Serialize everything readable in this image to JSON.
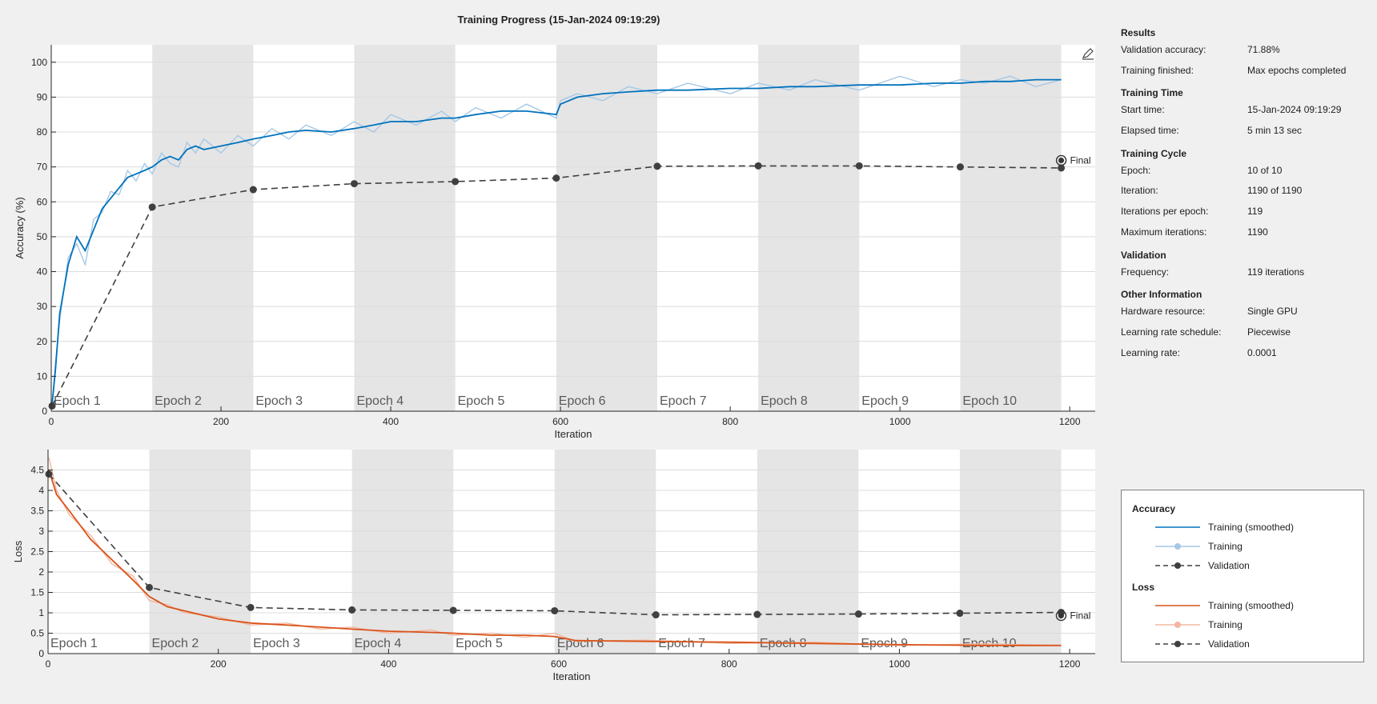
{
  "window": {
    "title": "Training Progress (15-Jan-2024 09:19:29)"
  },
  "colors": {
    "train_acc": "#0072bd",
    "train_acc_raw": "#a6c8e6",
    "train_loss": "#d95319",
    "train_loss_raw": "#f0b8a0",
    "validation": "#404040",
    "epoch_shade": "#e5e5e5"
  },
  "export_icon": "pen-export-icon",
  "info": [
    {
      "heading": "Results",
      "rows": [
        {
          "k": "Validation accuracy:",
          "v": "71.88%"
        },
        {
          "k": "Training finished:",
          "v": "Max epochs completed"
        }
      ]
    },
    {
      "heading": "Training Time",
      "rows": [
        {
          "k": "Start time:",
          "v": "15-Jan-2024 09:19:29"
        },
        {
          "k": "Elapsed time:",
          "v": "5 min 13 sec"
        }
      ]
    },
    {
      "heading": "Training Cycle",
      "rows": [
        {
          "k": "Epoch:",
          "v": "10 of 10"
        },
        {
          "k": "Iteration:",
          "v": "1190 of 1190"
        },
        {
          "k": "Iterations per epoch:",
          "v": "119"
        },
        {
          "k": "Maximum iterations:",
          "v": "1190"
        }
      ]
    },
    {
      "heading": "Validation",
      "rows": [
        {
          "k": "Frequency:",
          "v": "119 iterations"
        }
      ]
    },
    {
      "heading": "Other Information",
      "rows": [
        {
          "k": "Hardware resource:",
          "v": "Single GPU"
        },
        {
          "k": "Learning rate schedule:",
          "v": "Piecewise"
        },
        {
          "k": "Learning rate:",
          "v": "0.0001"
        }
      ]
    }
  ],
  "legend": {
    "groups": [
      {
        "heading": "Accuracy",
        "items": [
          {
            "label": "Training (smoothed)",
            "kind": "smooth",
            "color": "#0072bd"
          },
          {
            "label": "Training",
            "kind": "raw",
            "color": "#a6c8e6"
          },
          {
            "label": "Validation",
            "kind": "val",
            "color": "#404040"
          }
        ]
      },
      {
        "heading": "Loss",
        "items": [
          {
            "label": "Training (smoothed)",
            "kind": "smooth",
            "color": "#d95319"
          },
          {
            "label": "Training",
            "kind": "raw",
            "color": "#f0b8a0"
          },
          {
            "label": "Validation",
            "kind": "val",
            "color": "#404040"
          }
        ]
      }
    ]
  },
  "chart_data": [
    {
      "type": "line",
      "xlabel": "Iteration",
      "ylabel": "Accuracy (%)",
      "xlim": [
        0,
        1230
      ],
      "ylim": [
        0,
        105
      ],
      "xticks": [
        0,
        200,
        400,
        600,
        800,
        1000,
        1200
      ],
      "yticks": [
        0,
        10,
        20,
        30,
        40,
        50,
        60,
        70,
        80,
        90,
        100
      ],
      "grid": true,
      "epochs": [
        "Epoch 1",
        "Epoch 2",
        "Epoch 3",
        "Epoch 4",
        "Epoch 5",
        "Epoch 6",
        "Epoch 7",
        "Epoch 8",
        "Epoch 9",
        "Epoch 10"
      ],
      "epoch_length": 119,
      "final_label": "Final",
      "final_x": 1190,
      "final_value": 71.88,
      "series": [
        {
          "name": "Training (smoothed)",
          "x": [
            1,
            5,
            10,
            20,
            30,
            40,
            50,
            60,
            70,
            80,
            90,
            100,
            110,
            119,
            130,
            140,
            150,
            160,
            170,
            180,
            200,
            220,
            238,
            260,
            280,
            300,
            330,
            357,
            380,
            400,
            430,
            460,
            476,
            500,
            530,
            560,
            595,
            600,
            620,
            650,
            680,
            714,
            750,
            800,
            833,
            870,
            900,
            952,
            1000,
            1040,
            1071,
            1100,
            1130,
            1160,
            1190
          ],
          "values": [
            2,
            12,
            28,
            42,
            50,
            46,
            52,
            58,
            61,
            64,
            67,
            68,
            69,
            70,
            72,
            73,
            72,
            75,
            76,
            75,
            76,
            77,
            78,
            79,
            80,
            80.5,
            80,
            81,
            82,
            83,
            83,
            84,
            84,
            85,
            86,
            86,
            85,
            88,
            90,
            91,
            91.5,
            92,
            92,
            92.5,
            92.5,
            93,
            93,
            93.5,
            93.5,
            94,
            94,
            94.5,
            94.5,
            95,
            95
          ]
        },
        {
          "name": "Training",
          "x": [
            1,
            5,
            10,
            20,
            30,
            40,
            50,
            60,
            70,
            80,
            90,
            100,
            110,
            119,
            130,
            140,
            150,
            160,
            170,
            180,
            200,
            220,
            238,
            260,
            280,
            300,
            330,
            357,
            380,
            400,
            430,
            460,
            476,
            500,
            530,
            560,
            595,
            600,
            620,
            650,
            680,
            714,
            750,
            800,
            833,
            870,
            900,
            952,
            1000,
            1040,
            1071,
            1100,
            1130,
            1160,
            1190
          ],
          "values": [
            2,
            14,
            26,
            44,
            48,
            42,
            55,
            57,
            63,
            62,
            69,
            66,
            71,
            68,
            74,
            71,
            70,
            77,
            74,
            78,
            74,
            79,
            76,
            81,
            78,
            82,
            79,
            83,
            80,
            85,
            82,
            86,
            83,
            87,
            84,
            88,
            84,
            89,
            91,
            89,
            93,
            91,
            94,
            91,
            94,
            92,
            95,
            92,
            96,
            93,
            95,
            94,
            96,
            93,
            95
          ]
        },
        {
          "name": "Validation",
          "x": [
            1,
            119,
            238,
            357,
            476,
            595,
            714,
            833,
            952,
            1071,
            1190
          ],
          "values": [
            1.5,
            58.5,
            63.5,
            65.2,
            65.8,
            66.8,
            70.2,
            70.3,
            70.3,
            70,
            69.7
          ]
        }
      ]
    },
    {
      "type": "line",
      "xlabel": "Iteration",
      "ylabel": "Loss",
      "xlim": [
        0,
        1230
      ],
      "ylim": [
        0,
        5
      ],
      "xticks": [
        0,
        200,
        400,
        600,
        800,
        1000,
        1200
      ],
      "yticks": [
        0,
        0.5,
        1,
        1.5,
        2,
        2.5,
        3,
        3.5,
        4,
        4.5
      ],
      "grid": true,
      "epochs": [
        "Epoch 1",
        "Epoch 2",
        "Epoch 3",
        "Epoch 4",
        "Epoch 5",
        "Epoch 6",
        "Epoch 7",
        "Epoch 8",
        "Epoch 9",
        "Epoch 10"
      ],
      "epoch_length": 119,
      "final_label": "Final",
      "final_x": 1190,
      "final_value": 0.93,
      "series": [
        {
          "name": "Training (smoothed)",
          "x": [
            1,
            10,
            25,
            50,
            75,
            100,
            119,
            140,
            160,
            200,
            238,
            280,
            320,
            357,
            400,
            450,
            476,
            520,
            560,
            595,
            620,
            700,
            800,
            900,
            1000,
            1100,
            1190
          ],
          "values": [
            4.5,
            3.9,
            3.5,
            2.8,
            2.3,
            1.8,
            1.4,
            1.15,
            1.05,
            0.85,
            0.75,
            0.7,
            0.65,
            0.6,
            0.55,
            0.52,
            0.5,
            0.45,
            0.45,
            0.42,
            0.32,
            0.3,
            0.28,
            0.25,
            0.22,
            0.2,
            0.2
          ]
        },
        {
          "name": "Training",
          "x": [
            1,
            10,
            25,
            50,
            75,
            100,
            119,
            140,
            160,
            200,
            238,
            280,
            320,
            357,
            400,
            450,
            476,
            520,
            560,
            595,
            620,
            700,
            800,
            900,
            1000,
            1100,
            1190
          ],
          "values": [
            4.8,
            4.0,
            3.4,
            2.9,
            2.2,
            1.9,
            1.3,
            1.2,
            1.0,
            0.9,
            0.7,
            0.75,
            0.6,
            0.65,
            0.5,
            0.58,
            0.45,
            0.5,
            0.4,
            0.5,
            0.3,
            0.33,
            0.25,
            0.28,
            0.2,
            0.24,
            0.2
          ]
        },
        {
          "name": "Validation",
          "x": [
            1,
            119,
            238,
            357,
            476,
            595,
            714,
            833,
            952,
            1071,
            1190
          ],
          "values": [
            4.4,
            1.62,
            1.13,
            1.07,
            1.06,
            1.05,
            0.95,
            0.96,
            0.97,
            0.99,
            1.01
          ]
        }
      ]
    }
  ]
}
